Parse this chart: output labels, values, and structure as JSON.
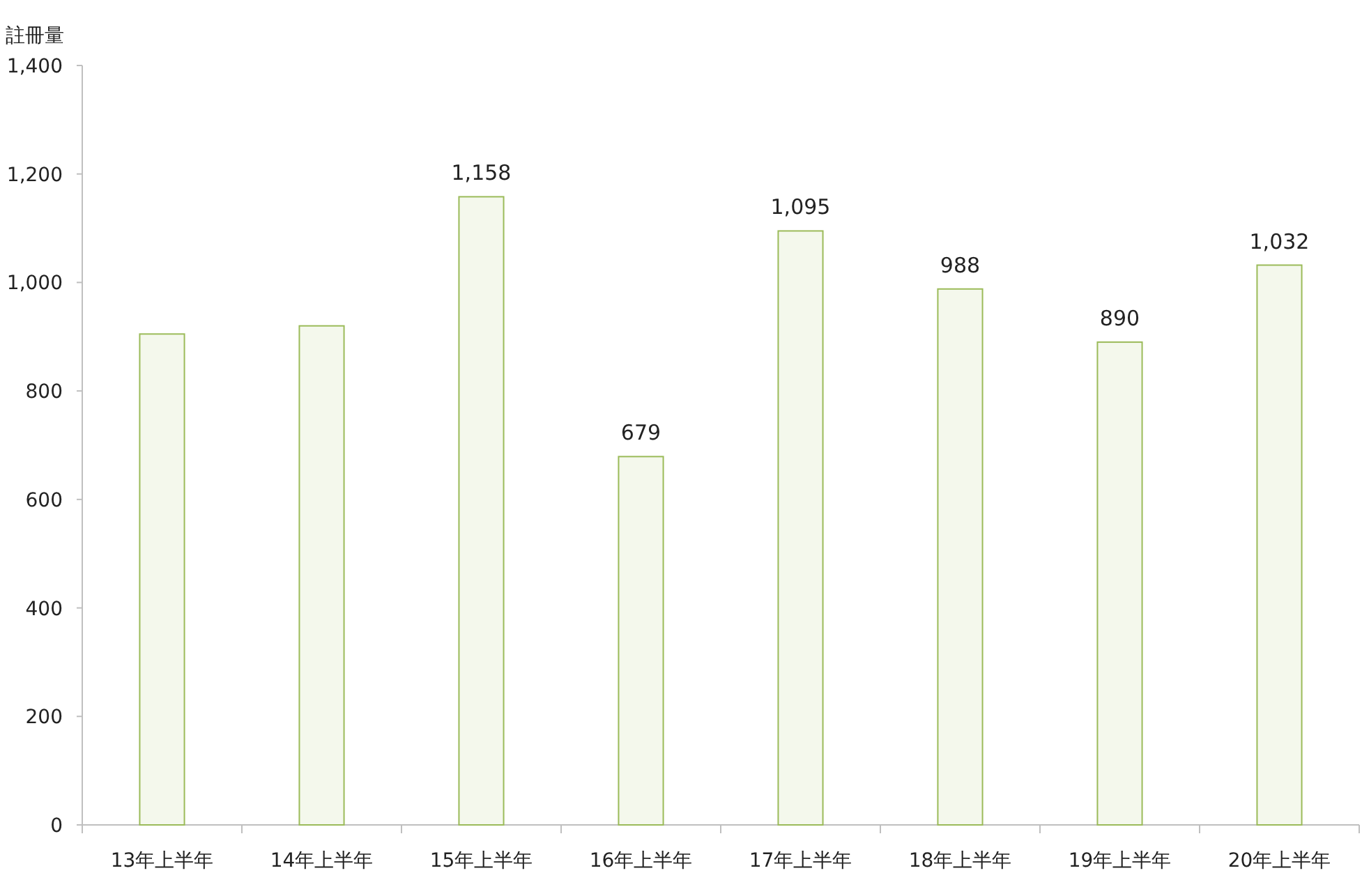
{
  "chart_data": {
    "type": "bar",
    "ylabel": "註冊量",
    "categories": [
      "13年上半年",
      "14年上半年",
      "15年上半年",
      "16年上半年",
      "17年上半年",
      "18年上半年",
      "19年上半年",
      "20年上半年"
    ],
    "values": [
      905,
      920,
      1158,
      679,
      1095,
      988,
      890,
      1032
    ],
    "value_labels": [
      null,
      null,
      "1,158",
      "679",
      "1,095",
      "988",
      "890",
      "1,032"
    ],
    "color": "#f4f8ec",
    "ylim": [
      0,
      1400
    ],
    "yticks": [
      0,
      200,
      400,
      600,
      800,
      {
        "value": 1000,
        "label": "1,000"
      },
      {
        "value": 1200,
        "label": "1,200"
      },
      {
        "value": 1400,
        "label": "1,400"
      }
    ]
  }
}
